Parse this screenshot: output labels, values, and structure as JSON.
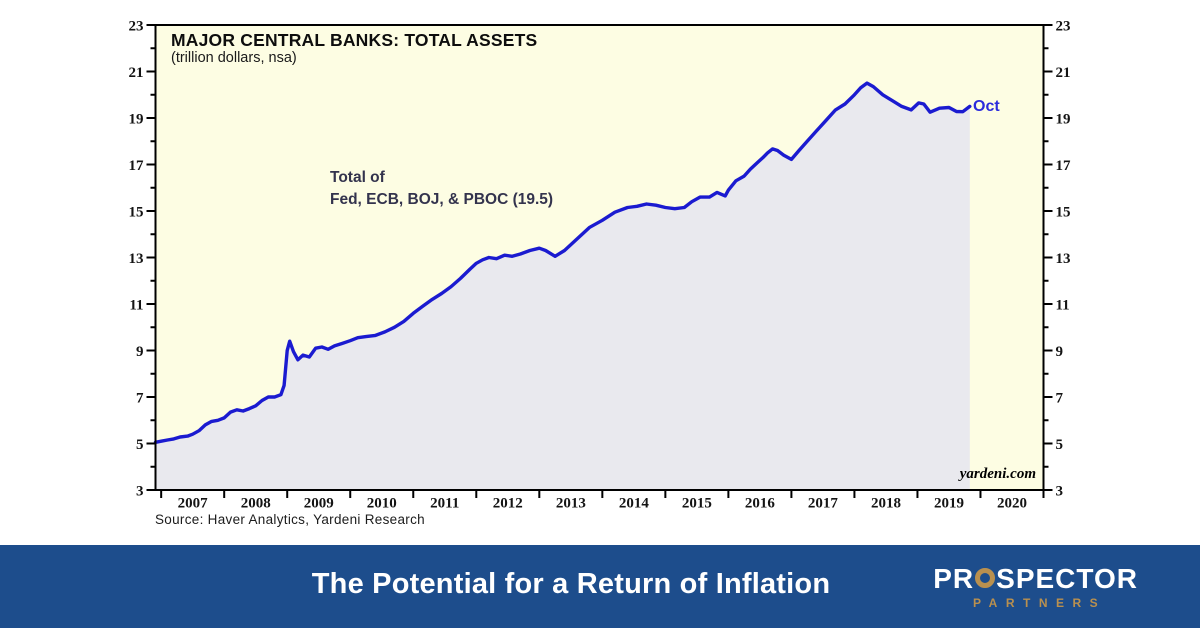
{
  "chart_data": {
    "type": "area",
    "title": "MAJOR CENTRAL BANKS: TOTAL ASSETS",
    "subtitle": "(trillion dollars, nsa)",
    "annotation": {
      "line1": "Total of",
      "line2": "Fed, ECB, BOJ, & PBOC (19.5)"
    },
    "watermark": "yardeni.com",
    "source_note": "Source: Haver Analytics, Yardeni Research",
    "xlabel": "",
    "ylabel": "trillion dollars",
    "xlim": [
      2006.91,
      2021.0
    ],
    "ylim": [
      3,
      23
    ],
    "y_major_ticks": [
      3,
      5,
      7,
      9,
      11,
      13,
      15,
      17,
      19,
      21,
      23
    ],
    "y_minor_ticks": [
      4,
      6,
      8,
      10,
      12,
      14,
      16,
      18,
      20,
      22
    ],
    "x_tick_years": [
      2007,
      2008,
      2009,
      2010,
      2011,
      2012,
      2013,
      2014,
      2015,
      2016,
      2017,
      2018,
      2019,
      2020,
      2021
    ],
    "x_label_years": [
      "2007",
      "2008",
      "2009",
      "2010",
      "2011",
      "2012",
      "2013",
      "2014",
      "2015",
      "2016",
      "2017",
      "2018",
      "2019",
      "2020"
    ],
    "grid": false,
    "legend": "none",
    "plot_bg": "#fdfde3",
    "series": [
      {
        "name": "Total of Fed, ECB, BOJ, & PBOC",
        "units": "trillion dollars, nsa",
        "last_point_label": "Oct",
        "last_value": 19.5,
        "color": "#1b1bd0",
        "fill_below": "#e9e9ee",
        "points": [
          [
            2006.91,
            5.05
          ],
          [
            2007.0,
            5.1
          ],
          [
            2007.1,
            5.15
          ],
          [
            2007.2,
            5.2
          ],
          [
            2007.3,
            5.28
          ],
          [
            2007.42,
            5.32
          ],
          [
            2007.5,
            5.4
          ],
          [
            2007.6,
            5.55
          ],
          [
            2007.7,
            5.8
          ],
          [
            2007.8,
            5.95
          ],
          [
            2007.9,
            6.0
          ],
          [
            2008.0,
            6.1
          ],
          [
            2008.1,
            6.35
          ],
          [
            2008.2,
            6.45
          ],
          [
            2008.3,
            6.4
          ],
          [
            2008.4,
            6.5
          ],
          [
            2008.5,
            6.62
          ],
          [
            2008.6,
            6.85
          ],
          [
            2008.7,
            7.0
          ],
          [
            2008.8,
            7.0
          ],
          [
            2008.9,
            7.1
          ],
          [
            2008.95,
            7.5
          ],
          [
            2009.0,
            9.0
          ],
          [
            2009.04,
            9.4
          ],
          [
            2009.1,
            8.95
          ],
          [
            2009.17,
            8.6
          ],
          [
            2009.25,
            8.8
          ],
          [
            2009.35,
            8.72
          ],
          [
            2009.45,
            9.1
          ],
          [
            2009.55,
            9.15
          ],
          [
            2009.65,
            9.05
          ],
          [
            2009.75,
            9.2
          ],
          [
            2009.87,
            9.3
          ],
          [
            2010.0,
            9.42
          ],
          [
            2010.12,
            9.55
          ],
          [
            2010.25,
            9.6
          ],
          [
            2010.4,
            9.65
          ],
          [
            2010.55,
            9.8
          ],
          [
            2010.7,
            10.0
          ],
          [
            2010.85,
            10.25
          ],
          [
            2011.0,
            10.6
          ],
          [
            2011.15,
            10.9
          ],
          [
            2011.3,
            11.2
          ],
          [
            2011.45,
            11.45
          ],
          [
            2011.6,
            11.75
          ],
          [
            2011.75,
            12.1
          ],
          [
            2011.9,
            12.5
          ],
          [
            2012.0,
            12.75
          ],
          [
            2012.1,
            12.9
          ],
          [
            2012.2,
            13.0
          ],
          [
            2012.32,
            12.95
          ],
          [
            2012.45,
            13.1
          ],
          [
            2012.57,
            13.05
          ],
          [
            2012.7,
            13.15
          ],
          [
            2012.85,
            13.3
          ],
          [
            2013.0,
            13.4
          ],
          [
            2013.1,
            13.3
          ],
          [
            2013.25,
            13.05
          ],
          [
            2013.4,
            13.3
          ],
          [
            2013.6,
            13.8
          ],
          [
            2013.8,
            14.3
          ],
          [
            2014.0,
            14.6
          ],
          [
            2014.2,
            14.95
          ],
          [
            2014.4,
            15.15
          ],
          [
            2014.55,
            15.2
          ],
          [
            2014.7,
            15.3
          ],
          [
            2014.85,
            15.25
          ],
          [
            2015.0,
            15.15
          ],
          [
            2015.15,
            15.1
          ],
          [
            2015.3,
            15.15
          ],
          [
            2015.42,
            15.4
          ],
          [
            2015.55,
            15.6
          ],
          [
            2015.7,
            15.6
          ],
          [
            2015.82,
            15.8
          ],
          [
            2015.95,
            15.65
          ],
          [
            2016.0,
            15.9
          ],
          [
            2016.12,
            16.3
          ],
          [
            2016.25,
            16.5
          ],
          [
            2016.35,
            16.8
          ],
          [
            2016.45,
            17.05
          ],
          [
            2016.55,
            17.3
          ],
          [
            2016.62,
            17.5
          ],
          [
            2016.7,
            17.67
          ],
          [
            2016.78,
            17.6
          ],
          [
            2016.88,
            17.4
          ],
          [
            2017.0,
            17.22
          ],
          [
            2017.12,
            17.6
          ],
          [
            2017.25,
            18.0
          ],
          [
            2017.4,
            18.45
          ],
          [
            2017.55,
            18.9
          ],
          [
            2017.7,
            19.35
          ],
          [
            2017.85,
            19.6
          ],
          [
            2018.0,
            20.0
          ],
          [
            2018.1,
            20.3
          ],
          [
            2018.2,
            20.5
          ],
          [
            2018.3,
            20.35
          ],
          [
            2018.45,
            20.0
          ],
          [
            2018.6,
            19.75
          ],
          [
            2018.75,
            19.5
          ],
          [
            2018.9,
            19.35
          ],
          [
            2019.02,
            19.65
          ],
          [
            2019.1,
            19.6
          ],
          [
            2019.2,
            19.25
          ],
          [
            2019.35,
            19.42
          ],
          [
            2019.5,
            19.45
          ],
          [
            2019.62,
            19.28
          ],
          [
            2019.72,
            19.27
          ],
          [
            2019.83,
            19.5
          ]
        ]
      }
    ]
  },
  "banner": {
    "title": "The Potential for a Return of Inflation",
    "bg_color": "#1d4d8c",
    "logo": {
      "pre": "PR",
      "post": "SPECTOR",
      "sub": "PARTNERS",
      "gold": "#b9904f",
      "white": "#ffffff"
    }
  }
}
